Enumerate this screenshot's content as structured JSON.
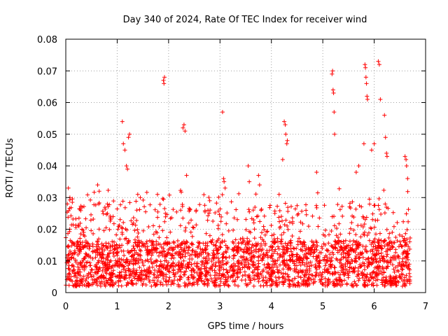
{
  "chart_data": {
    "type": "scatter",
    "title": "Day 340 of 2024, Rate Of TEC Index for receiver wind",
    "xlabel": "GPS time / hours",
    "ylabel": "ROTI / TECUs",
    "xlim": [
      0,
      7
    ],
    "ylim": [
      0,
      0.08
    ],
    "x_ticks": [
      "0",
      "1",
      "2",
      "3",
      "4",
      "5",
      "6",
      "7"
    ],
    "y_ticks": [
      "0",
      "0.01",
      "0.02",
      "0.03",
      "0.04",
      "0.05",
      "0.06",
      "0.07",
      "0.08"
    ],
    "grid": true,
    "marker": "+",
    "color": "#ff0000",
    "background_band": {
      "x_start": 0.0,
      "x_end": 6.7,
      "y_low": 0.002,
      "y_typ": 0.011,
      "y_high": 0.028
    },
    "x_range_covered": [
      0.0,
      6.7
    ],
    "series": [
      {
        "name": "ROTI",
        "x": [
          1.1,
          1.12,
          1.15,
          1.18,
          1.2,
          1.22,
          1.24,
          1.9,
          1.91,
          1.92,
          2.28,
          2.3,
          2.32,
          2.35,
          3.05,
          3.07,
          3.08,
          3.1,
          3.55,
          3.57,
          3.75,
          3.77,
          4.25,
          4.27,
          4.28,
          4.3,
          4.31,
          4.22,
          4.88,
          5.18,
          5.19,
          5.2,
          5.21,
          5.22,
          5.23,
          5.82,
          5.83,
          5.84,
          5.85,
          5.86,
          5.87,
          5.8,
          6.08,
          6.1,
          6.12,
          6.2,
          6.22,
          6.24,
          6.25,
          6.6,
          6.62,
          6.63,
          6.65,
          0.62,
          0.65,
          0.05,
          0.08,
          0.03,
          1.4,
          1.45,
          2.8,
          4.15,
          5.65,
          5.7,
          5.95,
          6.0
        ],
        "y": [
          0.054,
          0.047,
          0.045,
          0.04,
          0.039,
          0.049,
          0.05,
          0.067,
          0.066,
          0.068,
          0.052,
          0.053,
          0.051,
          0.037,
          0.057,
          0.036,
          0.035,
          0.033,
          0.04,
          0.035,
          0.037,
          0.034,
          0.054,
          0.053,
          0.05,
          0.047,
          0.048,
          0.042,
          0.038,
          0.069,
          0.07,
          0.064,
          0.063,
          0.057,
          0.05,
          0.072,
          0.071,
          0.068,
          0.066,
          0.062,
          0.061,
          0.047,
          0.073,
          0.072,
          0.061,
          0.056,
          0.049,
          0.044,
          0.043,
          0.043,
          0.042,
          0.04,
          0.036,
          0.034,
          0.032,
          0.033,
          0.03,
          0.028,
          0.031,
          0.03,
          0.029,
          0.031,
          0.038,
          0.04,
          0.045,
          0.047
        ]
      }
    ]
  }
}
